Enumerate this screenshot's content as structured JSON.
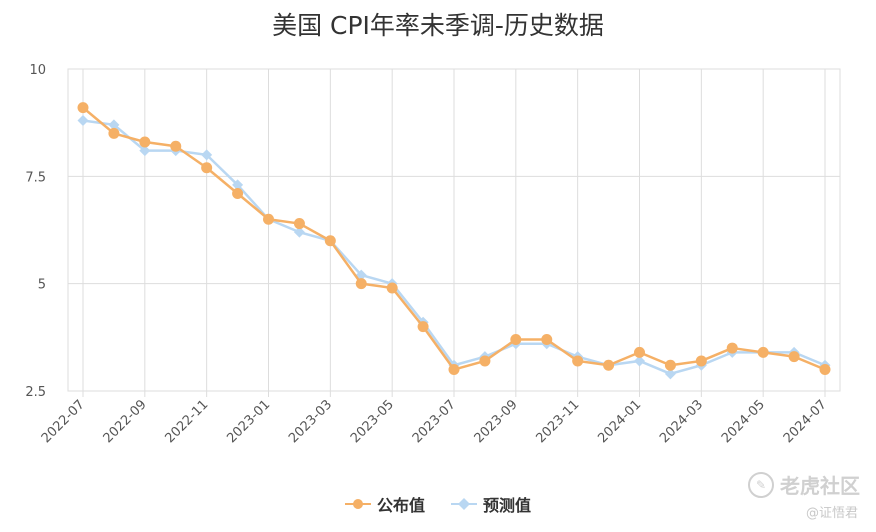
{
  "chart_data": {
    "type": "line",
    "title": "美国 CPI年率未季调-历史数据",
    "categories": [
      "2022-07",
      "2022-08",
      "2022-09",
      "2022-10",
      "2022-11",
      "2022-12",
      "2023-01",
      "2023-02",
      "2023-03",
      "2023-04",
      "2023-05",
      "2023-06",
      "2023-07",
      "2023-08",
      "2023-09",
      "2023-10",
      "2023-11",
      "2023-12",
      "2024-01",
      "2024-02",
      "2024-03",
      "2024-04",
      "2024-05",
      "2024-06",
      "2024-07"
    ],
    "x_tick_labels": [
      "2022-07",
      "2022-09",
      "2022-11",
      "2023-01",
      "2023-03",
      "2023-05",
      "2023-07",
      "2023-09",
      "2023-11",
      "2024-01",
      "2024-03",
      "2024-05",
      "2024-07"
    ],
    "y_tick_labels": [
      "10",
      "7.5",
      "5",
      "2.5"
    ],
    "ylim": [
      2.5,
      10
    ],
    "y_ticks": [
      2.5,
      5,
      7.5,
      10
    ],
    "grid": true,
    "legend_position": "bottom",
    "series": [
      {
        "name": "公布值",
        "color": "#f5b066",
        "marker": "circle",
        "values": [
          9.1,
          8.5,
          8.3,
          8.2,
          7.7,
          7.1,
          6.5,
          6.4,
          6.0,
          5.0,
          4.9,
          4.0,
          3.0,
          3.2,
          3.7,
          3.7,
          3.2,
          3.1,
          3.4,
          3.1,
          3.2,
          3.5,
          3.4,
          3.3,
          3.0
        ]
      },
      {
        "name": "预测值",
        "color": "#b9d7f2",
        "marker": "diamond",
        "values": [
          8.8,
          8.7,
          8.1,
          8.1,
          8.0,
          7.3,
          6.5,
          6.2,
          6.0,
          5.2,
          5.0,
          4.1,
          3.1,
          3.3,
          3.6,
          3.6,
          3.3,
          3.1,
          3.2,
          2.9,
          3.1,
          3.4,
          3.4,
          3.4,
          3.1
        ]
      }
    ]
  },
  "watermark": {
    "text": "老虎社区",
    "icon": "tiger-logo-icon",
    "credit": "@证悟君"
  }
}
